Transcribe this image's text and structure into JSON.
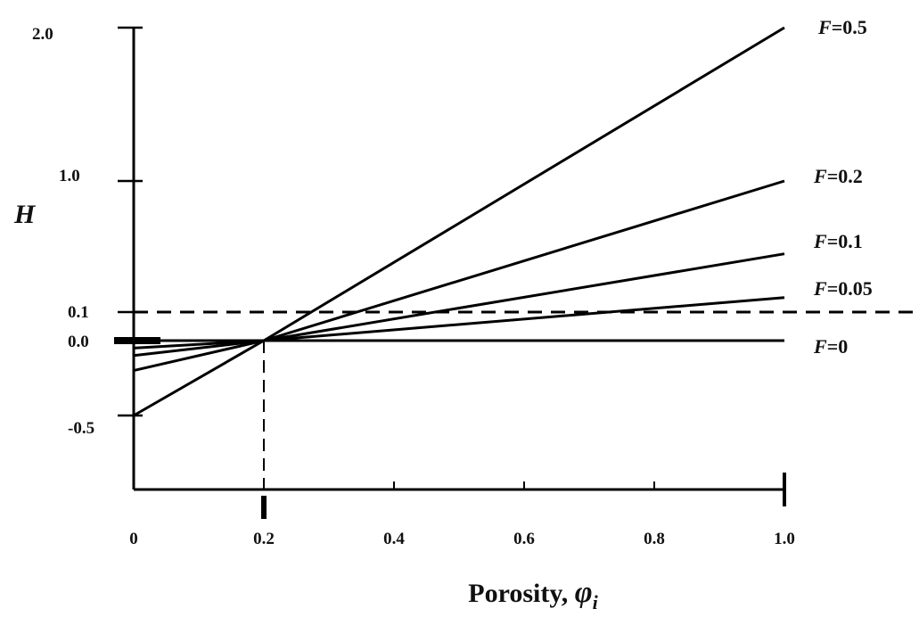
{
  "chart_data": {
    "type": "line",
    "xlabel": "Porosity, ",
    "xlabel_symbol": "φ",
    "xlabel_subscript": "i",
    "ylabel": "H",
    "x_ticks": [
      "0",
      "0.2",
      "0.4",
      "0.6",
      "0.8",
      "1.0"
    ],
    "y_ticks": [
      "2.0",
      "1.0",
      "0.1",
      "0.0",
      "-0.5"
    ],
    "xlim": [
      0,
      1.0
    ],
    "y_scale": "non-uniform (labeled ticks at -0.5, 0.0, 0.1, 1.0, 2.0)",
    "grid": false,
    "legend": "inline labels at right end of each line",
    "series": [
      {
        "name": "F=0.5",
        "name_var": "F",
        "name_val": "=0.5",
        "x": [
          0,
          0.2,
          1.0
        ],
        "y": [
          -0.5,
          0.0,
          2.0
        ]
      },
      {
        "name": "F=0.2",
        "name_var": "F",
        "name_val": "=0.2",
        "x": [
          0,
          0.2,
          1.0
        ],
        "y": [
          -0.2,
          0.0,
          1.0
        ]
      },
      {
        "name": "F=0.1",
        "name_var": "F",
        "name_val": "=0.1",
        "x": [
          0,
          0.2,
          1.0
        ],
        "y": [
          -0.1,
          0.0,
          0.5
        ]
      },
      {
        "name": "F=0.05",
        "name_var": "F",
        "name_val": "=0.05",
        "x": [
          0,
          0.2,
          1.0
        ],
        "y": [
          -0.05,
          0.0,
          0.2
        ]
      },
      {
        "name": "F=0",
        "name_var": "F",
        "name_val": "=0",
        "x": [
          0,
          1.0
        ],
        "y": [
          0.0,
          0.0
        ]
      }
    ],
    "reference_lines": [
      {
        "orientation": "horizontal",
        "y": 0.1,
        "style": "dashed"
      },
      {
        "orientation": "vertical",
        "x": 0.2,
        "style": "dashed"
      }
    ]
  }
}
